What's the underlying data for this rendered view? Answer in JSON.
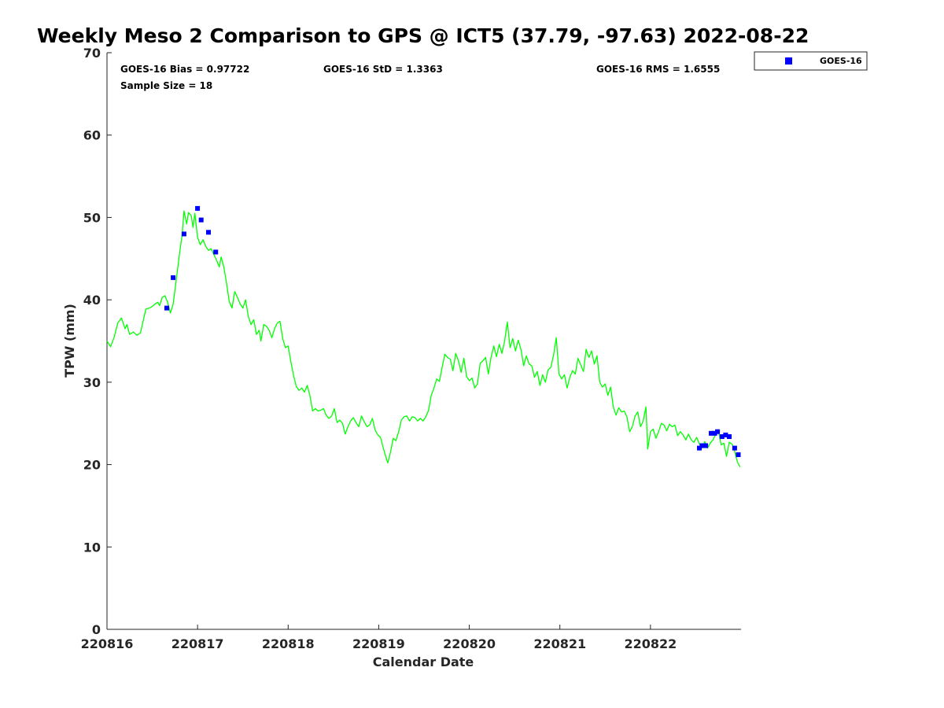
{
  "chart_data": {
    "type": "line",
    "title": "Weekly Meso 2 Comparison to GPS @ ICT5 (37.79, -97.63) 2022-08-22",
    "xlabel": "Calendar Date",
    "ylabel": "TPW (mm)",
    "xlim": [
      0,
      7
    ],
    "ylim": [
      0,
      70
    ],
    "x_ticks": [
      {
        "value": 0,
        "label": "220816"
      },
      {
        "value": 1,
        "label": "220817"
      },
      {
        "value": 2,
        "label": "220818"
      },
      {
        "value": 3,
        "label": "220819"
      },
      {
        "value": 4,
        "label": "220820"
      },
      {
        "value": 5,
        "label": "220821"
      },
      {
        "value": 6,
        "label": "220822"
      }
    ],
    "y_ticks": [
      0,
      10,
      20,
      30,
      40,
      50,
      60,
      70
    ],
    "legend": {
      "position": "top-right",
      "entries": [
        {
          "label": "GOES-16",
          "color": "#0000ff",
          "marker": "square"
        }
      ]
    },
    "stats": {
      "bias": "GOES-16 Bias = 0.97722",
      "std": "GOES-16 StD = 1.3363",
      "rms": "GOES-16 RMS = 1.6555",
      "sample": "Sample Size = 18"
    },
    "colors": {
      "gps_line": "#00ff00",
      "goes_marker": "#0000ff",
      "axis": "#262626"
    },
    "series": [
      {
        "type": "line",
        "color": "#00ff00",
        "points": [
          [
            0.0,
            35.0
          ],
          [
            0.04,
            34.3
          ],
          [
            0.08,
            35.5
          ],
          [
            0.12,
            37.2
          ],
          [
            0.16,
            37.8
          ],
          [
            0.2,
            36.5
          ],
          [
            0.22,
            37.0
          ],
          [
            0.25,
            35.8
          ],
          [
            0.29,
            36.1
          ],
          [
            0.33,
            35.7
          ],
          [
            0.37,
            36.0
          ],
          [
            0.4,
            37.5
          ],
          [
            0.43,
            38.9
          ],
          [
            0.47,
            39.0
          ],
          [
            0.5,
            39.2
          ],
          [
            0.53,
            39.5
          ],
          [
            0.56,
            39.7
          ],
          [
            0.58,
            39.3
          ],
          [
            0.61,
            40.3
          ],
          [
            0.64,
            40.5
          ],
          [
            0.67,
            39.7
          ],
          [
            0.7,
            38.4
          ],
          [
            0.73,
            39.5
          ],
          [
            0.76,
            42.0
          ],
          [
            0.8,
            45.5
          ],
          [
            0.83,
            48.0
          ],
          [
            0.85,
            50.8
          ],
          [
            0.88,
            49.2
          ],
          [
            0.9,
            50.6
          ],
          [
            0.93,
            50.2
          ],
          [
            0.95,
            48.8
          ],
          [
            0.97,
            50.5
          ],
          [
            1.0,
            47.6
          ],
          [
            1.03,
            46.7
          ],
          [
            1.06,
            47.3
          ],
          [
            1.09,
            46.5
          ],
          [
            1.12,
            46.0
          ],
          [
            1.15,
            46.2
          ],
          [
            1.18,
            45.5
          ],
          [
            1.21,
            44.8
          ],
          [
            1.24,
            44.0
          ],
          [
            1.26,
            45.2
          ],
          [
            1.29,
            44.0
          ],
          [
            1.32,
            42.0
          ],
          [
            1.35,
            39.8
          ],
          [
            1.38,
            39.0
          ],
          [
            1.41,
            41.0
          ],
          [
            1.44,
            40.3
          ],
          [
            1.47,
            39.5
          ],
          [
            1.5,
            39.0
          ],
          [
            1.53,
            40.0
          ],
          [
            1.56,
            38.0
          ],
          [
            1.59,
            37.0
          ],
          [
            1.62,
            37.6
          ],
          [
            1.65,
            35.8
          ],
          [
            1.68,
            36.3
          ],
          [
            1.7,
            35.0
          ],
          [
            1.73,
            37.0
          ],
          [
            1.76,
            36.8
          ],
          [
            1.79,
            36.3
          ],
          [
            1.82,
            35.4
          ],
          [
            1.85,
            36.5
          ],
          [
            1.88,
            37.2
          ],
          [
            1.91,
            37.4
          ],
          [
            1.94,
            35.3
          ],
          [
            1.97,
            34.2
          ],
          [
            2.0,
            34.4
          ],
          [
            2.03,
            32.5
          ],
          [
            2.06,
            30.8
          ],
          [
            2.09,
            29.5
          ],
          [
            2.12,
            29.0
          ],
          [
            2.15,
            29.3
          ],
          [
            2.18,
            28.8
          ],
          [
            2.21,
            29.6
          ],
          [
            2.24,
            28.4
          ],
          [
            2.27,
            26.5
          ],
          [
            2.3,
            26.8
          ],
          [
            2.33,
            26.5
          ],
          [
            2.36,
            26.6
          ],
          [
            2.39,
            26.8
          ],
          [
            2.42,
            26.0
          ],
          [
            2.45,
            25.6
          ],
          [
            2.48,
            25.9
          ],
          [
            2.51,
            26.8
          ],
          [
            2.54,
            25.1
          ],
          [
            2.57,
            25.4
          ],
          [
            2.6,
            25.0
          ],
          [
            2.63,
            23.7
          ],
          [
            2.66,
            24.6
          ],
          [
            2.69,
            25.3
          ],
          [
            2.72,
            25.7
          ],
          [
            2.75,
            25.1
          ],
          [
            2.78,
            24.6
          ],
          [
            2.81,
            25.9
          ],
          [
            2.84,
            25.2
          ],
          [
            2.87,
            24.6
          ],
          [
            2.9,
            24.8
          ],
          [
            2.93,
            25.6
          ],
          [
            2.96,
            24.2
          ],
          [
            2.99,
            23.6
          ],
          [
            3.02,
            23.3
          ],
          [
            3.05,
            22.0
          ],
          [
            3.08,
            20.9
          ],
          [
            3.1,
            20.2
          ],
          [
            3.13,
            21.5
          ],
          [
            3.16,
            23.2
          ],
          [
            3.19,
            22.9
          ],
          [
            3.22,
            24.0
          ],
          [
            3.25,
            25.4
          ],
          [
            3.28,
            25.8
          ],
          [
            3.31,
            25.9
          ],
          [
            3.34,
            25.3
          ],
          [
            3.37,
            25.8
          ],
          [
            3.4,
            25.7
          ],
          [
            3.43,
            25.3
          ],
          [
            3.46,
            25.6
          ],
          [
            3.49,
            25.3
          ],
          [
            3.52,
            25.8
          ],
          [
            3.55,
            26.6
          ],
          [
            3.58,
            28.4
          ],
          [
            3.61,
            29.3
          ],
          [
            3.64,
            30.4
          ],
          [
            3.67,
            30.1
          ],
          [
            3.7,
            31.8
          ],
          [
            3.73,
            33.4
          ],
          [
            3.76,
            33.0
          ],
          [
            3.79,
            32.8
          ],
          [
            3.82,
            31.4
          ],
          [
            3.85,
            33.5
          ],
          [
            3.88,
            32.6
          ],
          [
            3.91,
            31.2
          ],
          [
            3.94,
            32.9
          ],
          [
            3.97,
            30.7
          ],
          [
            4.0,
            30.2
          ],
          [
            4.03,
            30.5
          ],
          [
            4.06,
            29.3
          ],
          [
            4.09,
            29.8
          ],
          [
            4.12,
            32.3
          ],
          [
            4.15,
            32.6
          ],
          [
            4.18,
            33.0
          ],
          [
            4.21,
            31.0
          ],
          [
            4.24,
            33.0
          ],
          [
            4.27,
            34.4
          ],
          [
            4.3,
            33.1
          ],
          [
            4.33,
            34.6
          ],
          [
            4.36,
            33.5
          ],
          [
            4.39,
            35.0
          ],
          [
            4.42,
            37.3
          ],
          [
            4.45,
            34.2
          ],
          [
            4.48,
            35.3
          ],
          [
            4.51,
            33.8
          ],
          [
            4.54,
            35.1
          ],
          [
            4.57,
            34.0
          ],
          [
            4.6,
            32.0
          ],
          [
            4.63,
            33.2
          ],
          [
            4.66,
            32.2
          ],
          [
            4.69,
            32.0
          ],
          [
            4.72,
            30.6
          ],
          [
            4.75,
            31.3
          ],
          [
            4.78,
            29.6
          ],
          [
            4.81,
            30.9
          ],
          [
            4.84,
            30.0
          ],
          [
            4.87,
            31.5
          ],
          [
            4.9,
            31.8
          ],
          [
            4.93,
            33.3
          ],
          [
            4.96,
            35.4
          ],
          [
            4.99,
            31.0
          ],
          [
            5.02,
            30.4
          ],
          [
            5.05,
            30.9
          ],
          [
            5.08,
            29.3
          ],
          [
            5.11,
            30.6
          ],
          [
            5.14,
            31.4
          ],
          [
            5.17,
            31.0
          ],
          [
            5.2,
            32.9
          ],
          [
            5.23,
            32.1
          ],
          [
            5.26,
            31.3
          ],
          [
            5.29,
            34.0
          ],
          [
            5.32,
            33.0
          ],
          [
            5.35,
            33.8
          ],
          [
            5.38,
            32.2
          ],
          [
            5.41,
            33.2
          ],
          [
            5.44,
            30.0
          ],
          [
            5.47,
            29.4
          ],
          [
            5.5,
            29.8
          ],
          [
            5.53,
            28.4
          ],
          [
            5.56,
            29.4
          ],
          [
            5.59,
            27.0
          ],
          [
            5.62,
            26.0
          ],
          [
            5.65,
            26.9
          ],
          [
            5.68,
            26.4
          ],
          [
            5.71,
            26.5
          ],
          [
            5.74,
            25.8
          ],
          [
            5.77,
            24.0
          ],
          [
            5.8,
            24.6
          ],
          [
            5.83,
            25.9
          ],
          [
            5.86,
            26.4
          ],
          [
            5.89,
            24.6
          ],
          [
            5.92,
            25.3
          ],
          [
            5.95,
            27.0
          ],
          [
            5.97,
            21.9
          ],
          [
            6.0,
            24.0
          ],
          [
            6.03,
            24.3
          ],
          [
            6.06,
            23.2
          ],
          [
            6.09,
            24.0
          ],
          [
            6.12,
            25.0
          ],
          [
            6.15,
            24.8
          ],
          [
            6.18,
            24.1
          ],
          [
            6.21,
            24.9
          ],
          [
            6.24,
            24.6
          ],
          [
            6.27,
            24.8
          ],
          [
            6.3,
            23.5
          ],
          [
            6.33,
            24.0
          ],
          [
            6.36,
            23.6
          ],
          [
            6.39,
            23.0
          ],
          [
            6.42,
            23.7
          ],
          [
            6.45,
            23.0
          ],
          [
            6.48,
            22.7
          ],
          [
            6.51,
            23.3
          ],
          [
            6.54,
            22.5
          ],
          [
            6.57,
            22.0
          ],
          [
            6.6,
            22.8
          ],
          [
            6.63,
            22.0
          ],
          [
            6.66,
            22.6
          ],
          [
            6.69,
            23.0
          ],
          [
            6.72,
            23.7
          ],
          [
            6.75,
            24.1
          ],
          [
            6.78,
            22.4
          ],
          [
            6.81,
            22.6
          ],
          [
            6.84,
            21.0
          ],
          [
            6.87,
            22.7
          ],
          [
            6.9,
            22.5
          ],
          [
            6.93,
            21.6
          ],
          [
            6.96,
            20.3
          ],
          [
            6.99,
            19.7
          ]
        ]
      },
      {
        "name": "GOES-16",
        "type": "scatter",
        "color": "#0000ff",
        "points": [
          [
            0.66,
            39.0
          ],
          [
            0.73,
            42.7
          ],
          [
            0.85,
            48.0
          ],
          [
            1.0,
            51.1
          ],
          [
            1.04,
            49.7
          ],
          [
            1.12,
            48.2
          ],
          [
            1.2,
            45.8
          ],
          [
            6.54,
            22.0
          ],
          [
            6.57,
            22.3
          ],
          [
            6.61,
            22.3
          ],
          [
            6.67,
            23.8
          ],
          [
            6.71,
            23.8
          ],
          [
            6.74,
            24.0
          ],
          [
            6.79,
            23.4
          ],
          [
            6.83,
            23.6
          ],
          [
            6.87,
            23.4
          ],
          [
            6.93,
            22.0
          ],
          [
            6.97,
            21.2
          ]
        ]
      }
    ]
  }
}
